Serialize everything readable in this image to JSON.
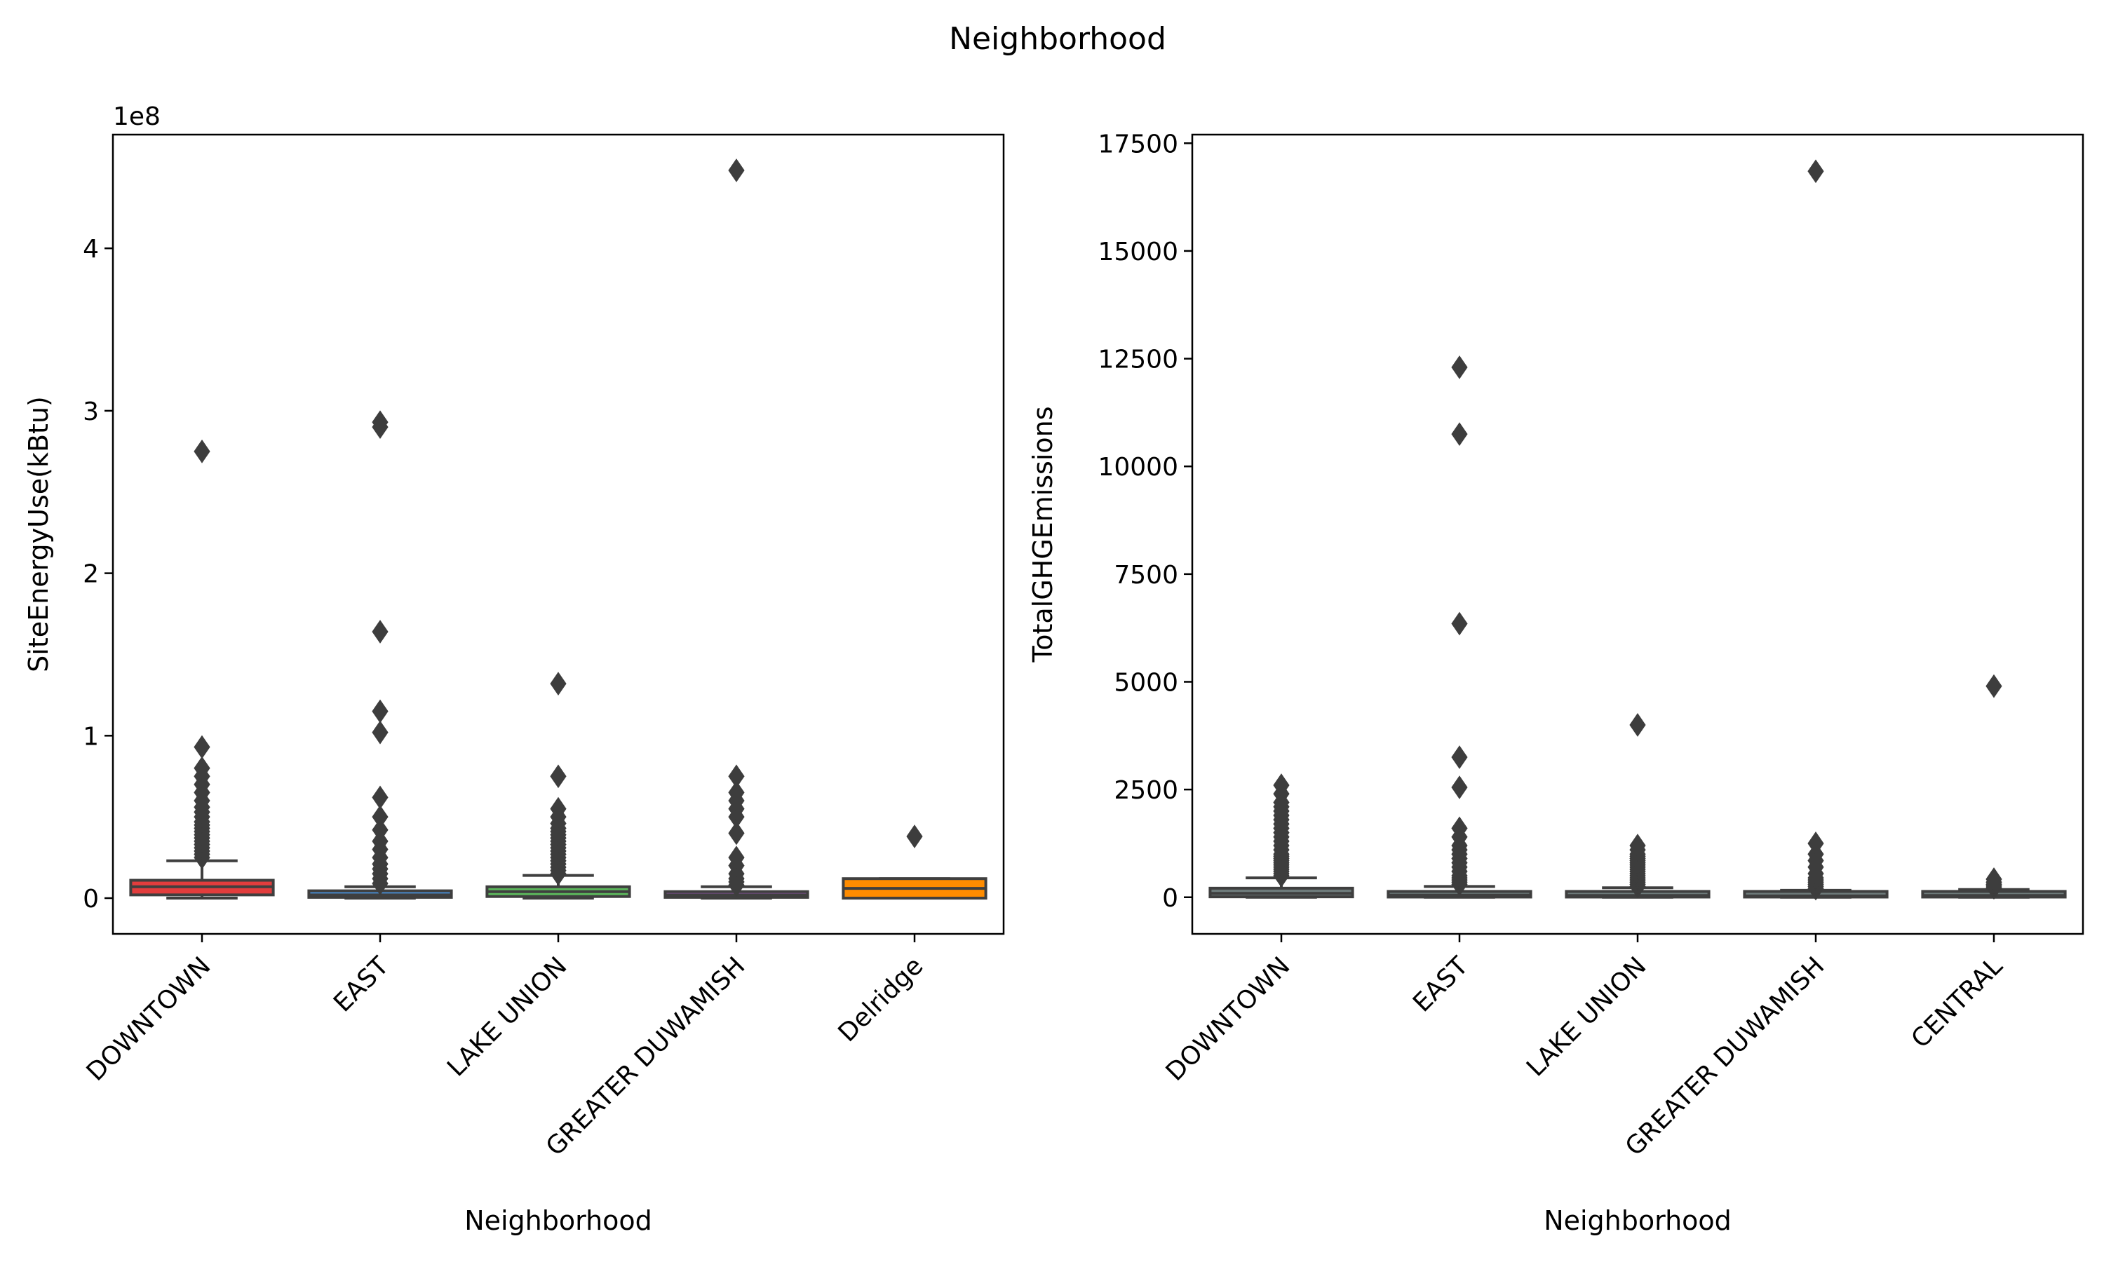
{
  "figure": {
    "title": "Neighborhood"
  },
  "chart_data": [
    {
      "type": "box",
      "xlabel": "Neighborhood",
      "ylabel": "SiteEnergyUse(kBtu)",
      "offset_label": "1e8",
      "categories": [
        "DOWNTOWN",
        "EAST",
        "LAKE UNION",
        "GREATER DUWAMISH",
        "Delridge"
      ],
      "yticks": [
        0,
        1,
        2,
        3,
        4
      ],
      "ytick_labels": [
        "0",
        "1",
        "2",
        "3",
        "4"
      ],
      "ylim": [
        -0.22,
        4.7
      ],
      "colors": [
        "#e23d3d",
        "#4a90d9",
        "#5cb85c",
        "#9b59b6",
        "#ff8c00"
      ],
      "boxes": [
        {
          "q1": 0.02,
          "median": 0.07,
          "q3": 0.11,
          "whisker_low": 0.0,
          "whisker_high": 0.23,
          "outliers": [
            0.25,
            0.27,
            0.29,
            0.31,
            0.33,
            0.35,
            0.37,
            0.39,
            0.41,
            0.43,
            0.45,
            0.47,
            0.5,
            0.53,
            0.56,
            0.6,
            0.65,
            0.7,
            0.75,
            0.8,
            0.93,
            2.75
          ]
        },
        {
          "q1": 0.005,
          "median": 0.02,
          "q3": 0.045,
          "whisker_low": 0.0,
          "whisker_high": 0.07,
          "outliers": [
            0.09,
            0.12,
            0.15,
            0.18,
            0.21,
            0.25,
            0.3,
            0.35,
            0.42,
            0.5,
            0.62,
            1.02,
            1.15,
            1.64,
            2.9,
            2.93
          ]
        },
        {
          "q1": 0.01,
          "median": 0.04,
          "q3": 0.07,
          "whisker_low": 0.0,
          "whisker_high": 0.14,
          "outliers": [
            0.15,
            0.17,
            0.19,
            0.21,
            0.23,
            0.25,
            0.27,
            0.29,
            0.31,
            0.33,
            0.35,
            0.37,
            0.39,
            0.41,
            0.43,
            0.46,
            0.5,
            0.55,
            0.75,
            1.32
          ]
        },
        {
          "q1": 0.005,
          "median": 0.02,
          "q3": 0.04,
          "whisker_low": 0.0,
          "whisker_high": 0.07,
          "outliers": [
            0.08,
            0.1,
            0.12,
            0.15,
            0.2,
            0.25,
            0.4,
            0.5,
            0.55,
            0.6,
            0.65,
            0.75,
            4.48
          ]
        },
        {
          "q1": 0.0,
          "median": 0.06,
          "q3": 0.12,
          "whisker_low": 0.0,
          "whisker_high": 0.12,
          "outliers": [
            0.38
          ]
        }
      ]
    },
    {
      "type": "box",
      "xlabel": "Neighborhood",
      "ylabel": "TotalGHGEmissions",
      "categories": [
        "DOWNTOWN",
        "EAST",
        "LAKE UNION",
        "GREATER DUWAMISH",
        "CENTRAL"
      ],
      "yticks": [
        0,
        2500,
        5000,
        7500,
        10000,
        12500,
        15000,
        17500
      ],
      "ytick_labels": [
        "0",
        "2500",
        "5000",
        "7500",
        "10000",
        "12500",
        "15000",
        "17500"
      ],
      "ylim": [
        -850,
        17700
      ],
      "colors": [
        "#6e7b7b",
        "#6e7b7b",
        "#6e7b7b",
        "#6e7b7b",
        "#6e7b7b"
      ],
      "boxes": [
        {
          "q1": 10,
          "median": 90,
          "q3": 210,
          "whisker_low": 0,
          "whisker_high": 450,
          "outliers": [
            500,
            550,
            600,
            650,
            700,
            750,
            800,
            850,
            900,
            950,
            1000,
            1100,
            1200,
            1300,
            1400,
            1500,
            1600,
            1700,
            1800,
            1900,
            2000,
            2100,
            2200,
            2400,
            2600
          ]
        },
        {
          "q1": 5,
          "median": 50,
          "q3": 120,
          "whisker_low": 0,
          "whisker_high": 250,
          "outliers": [
            300,
            350,
            400,
            450,
            500,
            600,
            700,
            800,
            900,
            1000,
            1100,
            1200,
            1400,
            1600,
            2550,
            3250,
            6350,
            10750,
            12300
          ]
        },
        {
          "q1": 5,
          "median": 40,
          "q3": 110,
          "whisker_low": 0,
          "whisker_high": 220,
          "outliers": [
            250,
            300,
            350,
            400,
            450,
            500,
            550,
            600,
            650,
            700,
            750,
            800,
            850,
            900,
            950,
            1000,
            1100,
            1200,
            4000
          ]
        },
        {
          "q1": 5,
          "median": 30,
          "q3": 80,
          "whisker_low": 0,
          "whisker_high": 160,
          "outliers": [
            200,
            250,
            300,
            350,
            400,
            450,
            550,
            700,
            850,
            1000,
            1250,
            16850
          ]
        },
        {
          "q1": 5,
          "median": 40,
          "q3": 100,
          "whisker_low": 0,
          "whisker_high": 180,
          "outliers": [
            220,
            260,
            300,
            350,
            420,
            4900
          ]
        }
      ]
    }
  ]
}
